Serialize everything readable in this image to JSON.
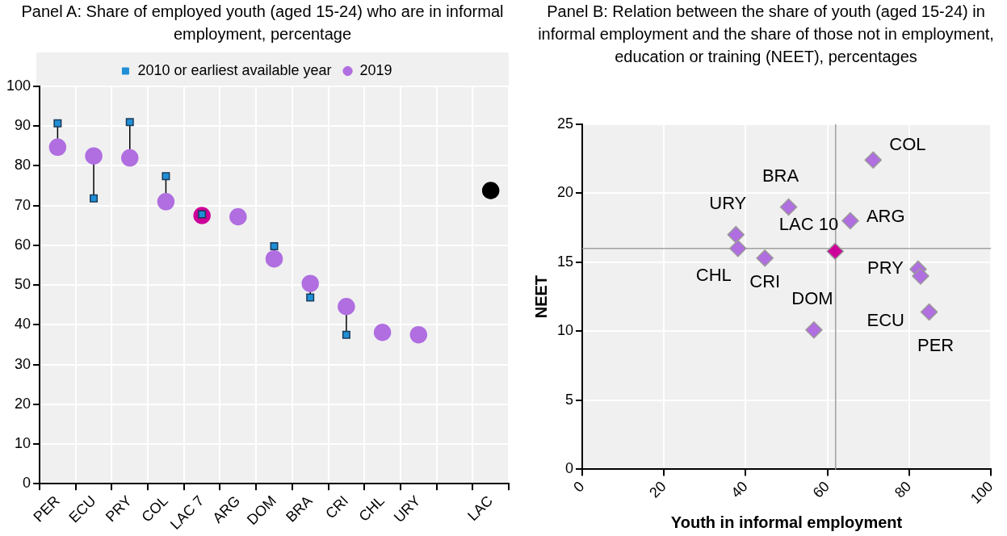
{
  "chart_data": [
    {
      "type": "scatter",
      "title": "Panel A: Share of employed youth (aged 15-24) who are in informal employment, percentage",
      "categories": [
        "PER",
        "ECU",
        "PRY",
        "COL",
        "LAC 7",
        "ARG",
        "DOM",
        "BRA",
        "CRI",
        "CHL",
        "URY",
        null,
        "LAC"
      ],
      "series": [
        {
          "name": "2010 or earliest available year",
          "color": "#1f8fd6",
          "marker": "square",
          "values": [
            90.7,
            71.8,
            91,
            77.4,
            67.8,
            null,
            59.8,
            46.9,
            37.5,
            null,
            null,
            null,
            null
          ]
        },
        {
          "name": "2019",
          "color": "#b06ee0",
          "marker": "circle",
          "colors": [
            "#b06ee0",
            "#b06ee0",
            "#b06ee0",
            "#b06ee0",
            "#cc0099",
            "#b06ee0",
            "#b06ee0",
            "#b06ee0",
            "#b06ee0",
            "#b06ee0",
            "#b06ee0",
            "#b06ee0",
            "#000000"
          ],
          "values": [
            84.7,
            82.5,
            82.0,
            71.0,
            67.5,
            67.2,
            56.6,
            50.4,
            44.6,
            38.1,
            37.5,
            null,
            73.8
          ]
        }
      ],
      "ylim": [
        0,
        100
      ],
      "yticks": [
        0,
        10,
        20,
        30,
        40,
        50,
        60,
        70,
        80,
        90,
        100
      ],
      "grid": true,
      "legend": "top"
    },
    {
      "type": "scatter",
      "title": "Panel B: Relation between the share of youth (aged 15-24) in informal employment and the share of those not in employment, education or training (NEET), percentages",
      "xlabel": "Youth in informal employment",
      "ylabel": "NEET",
      "marker": "diamond",
      "x": [
        71.2,
        50.5,
        37.6,
        65.6,
        38.1,
        44.7,
        61.9,
        82.2,
        82.8,
        84.9,
        56.7
      ],
      "values": [
        22.4,
        19.0,
        17.0,
        18.0,
        16.0,
        15.3,
        15.8,
        14.5,
        14.0,
        11.4,
        10.1
      ],
      "colors": [
        "#b06ee0",
        "#b06ee0",
        "#b06ee0",
        "#b06ee0",
        "#b06ee0",
        "#b06ee0",
        "#cc0099",
        "#b06ee0",
        "#b06ee0",
        "#b06ee0",
        "#b06ee0"
      ],
      "annotations": [
        {
          "text": "COL",
          "x": 71.2,
          "y": 22.4
        },
        {
          "text": "BRA",
          "x": 50.5,
          "y": 19.0
        },
        {
          "text": "URY",
          "x": 37.6,
          "y": 17.0
        },
        {
          "text": "ARG",
          "x": 65.6,
          "y": 18.0
        },
        {
          "text": "CHL",
          "x": 38.1,
          "y": 16.0
        },
        {
          "text": "CRI",
          "x": 44.7,
          "y": 15.3
        },
        {
          "text": "LAC 10",
          "x": 61.9,
          "y": 15.8
        },
        {
          "text": "PRY",
          "x": 82.2,
          "y": 14.5
        },
        {
          "text": "ECU",
          "x": 82.8,
          "y": 14.0
        },
        {
          "text": "PER",
          "x": 84.9,
          "y": 11.4
        },
        {
          "text": "DOM",
          "x": 56.7,
          "y": 10.1
        }
      ],
      "ref_lines": [
        {
          "axis": "x",
          "value": 62,
          "color": "#a0a0a0"
        },
        {
          "axis": "y",
          "value": 16,
          "color": "#a0a0a0"
        }
      ],
      "xlim": [
        0,
        100
      ],
      "xticks": [
        0,
        20,
        40,
        60,
        80,
        100
      ],
      "ylim": [
        0,
        25
      ],
      "yticks": [
        0,
        5,
        10,
        15,
        20,
        25
      ],
      "grid": true
    }
  ]
}
